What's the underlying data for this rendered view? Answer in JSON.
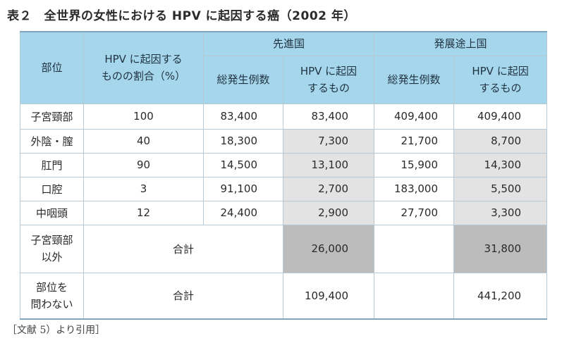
{
  "title": "表２　全世界の女性における HPV に起因する癌（2002 年）",
  "header": {
    "site": "部位",
    "hpv_pct_line1": "HPV に起因する",
    "hpv_pct_line2": "ものの割合（%）",
    "developed": "先進国",
    "developing": "発展途上国",
    "total_cases": "総発生例数",
    "hpv_line1": "HPV に起因",
    "hpv_line2": "するもの"
  },
  "rows": [
    {
      "site": "子宮頸部",
      "pct": "100",
      "dev_total": "83,400",
      "dev_hpv": "83,400",
      "dvg_total": "409,400",
      "dvg_hpv": "409,400"
    },
    {
      "site": "外陰・膣",
      "pct": "40",
      "dev_total": "18,300",
      "dev_hpv": "7,300",
      "dvg_total": "21,700",
      "dvg_hpv": "8,700"
    },
    {
      "site": "肛門",
      "pct": "90",
      "dev_total": "14,500",
      "dev_hpv": "13,100",
      "dvg_total": "15,900",
      "dvg_hpv": "14,300"
    },
    {
      "site": "口腔",
      "pct": "3",
      "dev_total": "91,100",
      "dev_hpv": "2,700",
      "dvg_total": "183,000",
      "dvg_hpv": "5,500"
    },
    {
      "site": "中咽頭",
      "pct": "12",
      "dev_total": "24,400",
      "dev_hpv": "2,900",
      "dvg_total": "27,700",
      "dvg_hpv": "3,300"
    }
  ],
  "totals": [
    {
      "site_line1": "子宮頸部",
      "site_line2": "以外",
      "label": "合計",
      "dev_hpv": "26,000",
      "dvg_hpv": "31,800"
    },
    {
      "site_line1": "部位を",
      "site_line2": "問わない",
      "label": "合計",
      "dev_hpv": "109,400",
      "dvg_hpv": "441,200"
    }
  ],
  "source": "［文献 5）より引用］"
}
